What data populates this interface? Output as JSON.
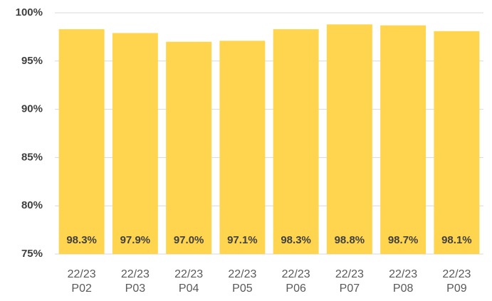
{
  "chart_data": {
    "type": "bar",
    "categories": [
      [
        "22/23",
        "P02"
      ],
      [
        "22/23",
        "P03"
      ],
      [
        "22/23",
        "P04"
      ],
      [
        "22/23",
        "P05"
      ],
      [
        "22/23",
        "P06"
      ],
      [
        "22/23",
        "P07"
      ],
      [
        "22/23",
        "P08"
      ],
      [
        "22/23",
        "P09"
      ]
    ],
    "values": [
      98.3,
      97.9,
      97.0,
      97.1,
      98.3,
      98.8,
      98.7,
      98.1
    ],
    "value_labels": [
      "98.3%",
      "97.9%",
      "97.0%",
      "97.1%",
      "98.3%",
      "98.8%",
      "98.7%",
      "98.1%"
    ],
    "color": "#ffd54f",
    "ylim": [
      75,
      100
    ],
    "yticks": [
      {
        "value": 75,
        "label": "75%"
      },
      {
        "value": 80,
        "label": "80%"
      },
      {
        "value": 85,
        "label": "85%"
      },
      {
        "value": 90,
        "label": "90%"
      },
      {
        "value": 95,
        "label": "95%"
      },
      {
        "value": 100,
        "label": "100%"
      }
    ],
    "grid": true
  }
}
